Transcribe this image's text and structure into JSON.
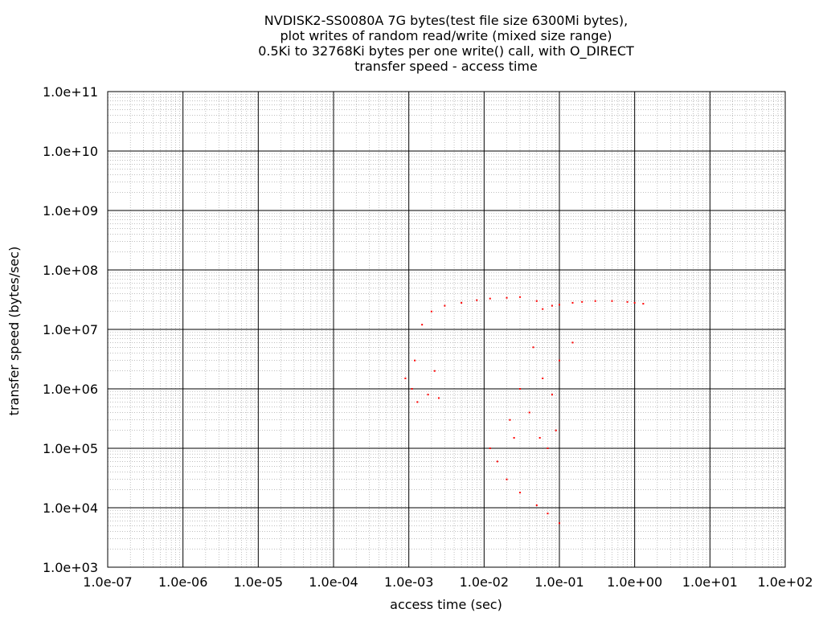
{
  "chart_data": {
    "type": "scatter",
    "title_lines": [
      "NVDISK2-SS0080A 7G bytes(test file size 6300Mi bytes),",
      "plot writes of random read/write (mixed size range)",
      "0.5Ki to 32768Ki bytes per one write() call, with O_DIRECT",
      "transfer speed - access time"
    ],
    "xlabel": "access time (sec)",
    "ylabel": "transfer speed (bytes/sec)",
    "x_scale": "log",
    "y_scale": "log",
    "xlim": [
      1e-07,
      100
    ],
    "ylim": [
      1000,
      100000000000
    ],
    "x_ticks": [
      "1.0e-07",
      "1.0e-06",
      "1.0e-05",
      "1.0e-04",
      "1.0e-03",
      "1.0e-02",
      "1.0e-01",
      "1.0e+00",
      "1.0e+01",
      "1.0e+02"
    ],
    "y_ticks": [
      "1.0e+03",
      "1.0e+04",
      "1.0e+05",
      "1.0e+06",
      "1.0e+07",
      "1.0e+08",
      "1.0e+09",
      "1.0e+10",
      "1.0e+11"
    ],
    "grid": true,
    "point_color": "#ff0000",
    "series": [
      {
        "points": [
          [
            0.0012,
            3000000
          ],
          [
            0.0015,
            12000000
          ],
          [
            0.002,
            20000000
          ],
          [
            0.003,
            25000000
          ],
          [
            0.005,
            28000000
          ],
          [
            0.008,
            31000000
          ],
          [
            0.012,
            33000000
          ],
          [
            0.02,
            34000000
          ],
          [
            0.03,
            35000000
          ],
          [
            0.05,
            30000000
          ],
          [
            0.06,
            22000000
          ],
          [
            0.08,
            25000000
          ],
          [
            0.1,
            26000000
          ],
          [
            0.15,
            28000000
          ],
          [
            0.2,
            29000000
          ],
          [
            0.3,
            30000000
          ],
          [
            0.5,
            30000000
          ],
          [
            0.8,
            29000000
          ],
          [
            1.0,
            28000000
          ],
          [
            1.3,
            27000000
          ],
          [
            0.045,
            5000000
          ],
          [
            0.06,
            1500000
          ],
          [
            0.08,
            800000
          ],
          [
            0.1,
            3000000
          ],
          [
            0.15,
            6000000
          ],
          [
            0.025,
            150000
          ],
          [
            0.022,
            300000
          ],
          [
            0.03,
            1000000
          ],
          [
            0.04,
            400000
          ],
          [
            0.055,
            150000
          ],
          [
            0.07,
            100000
          ],
          [
            0.09,
            200000
          ],
          [
            0.012,
            100000
          ],
          [
            0.015,
            60000
          ],
          [
            0.02,
            30000
          ],
          [
            0.03,
            18000
          ],
          [
            0.05,
            11000
          ],
          [
            0.07,
            8000
          ],
          [
            0.1,
            5500
          ],
          [
            0.0011,
            1000000
          ],
          [
            0.0013,
            600000
          ],
          [
            0.0018,
            800000
          ],
          [
            0.0022,
            2000000
          ],
          [
            0.0025,
            700000
          ],
          [
            0.0009,
            1500000
          ]
        ]
      }
    ]
  }
}
